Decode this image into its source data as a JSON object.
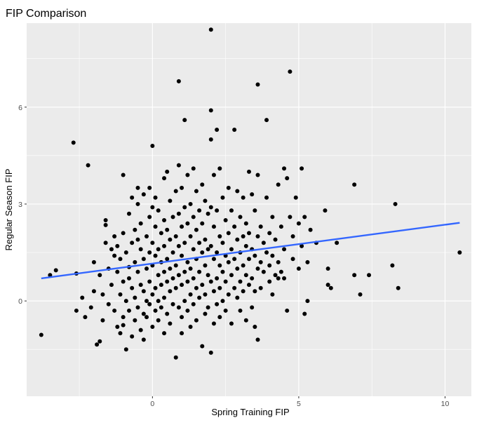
{
  "chart_data": {
    "type": "scatter",
    "title": "FIP Comparison",
    "xlabel": "Spring Training FIP",
    "ylabel": "Regular Season FIP",
    "xlim": [
      -4.3,
      10.9
    ],
    "ylim": [
      -2.95,
      8.6
    ],
    "xticks": [
      0,
      5,
      10
    ],
    "yticks": [
      0,
      3,
      6
    ],
    "grid": true,
    "panel_background": "#ebebeb",
    "grid_color": "#ffffff",
    "point_color": "#000000",
    "trend_color": "#3366ff",
    "trend_line": {
      "x": [
        -3.8,
        10.5
      ],
      "y": [
        0.7,
        2.42
      ]
    },
    "points": [
      [
        -3.8,
        -1.05
      ],
      [
        -3.5,
        0.8
      ],
      [
        -3.3,
        0.95
      ],
      [
        -2.7,
        4.9
      ],
      [
        -2.6,
        0.85
      ],
      [
        -2.6,
        -0.3
      ],
      [
        -2.4,
        0.1
      ],
      [
        -2.3,
        -0.5
      ],
      [
        -2.2,
        4.2
      ],
      [
        -2.1,
        -0.2
      ],
      [
        -2.0,
        0.3
      ],
      [
        -2.0,
        1.2
      ],
      [
        -1.9,
        -1.35
      ],
      [
        -1.8,
        -1.25
      ],
      [
        -1.8,
        0.8
      ],
      [
        -1.7,
        0.2
      ],
      [
        -1.7,
        -0.6
      ],
      [
        -1.6,
        1.8
      ],
      [
        -1.6,
        2.5
      ],
      [
        -1.6,
        2.35
      ],
      [
        -1.5,
        1.0
      ],
      [
        -1.5,
        -0.1
      ],
      [
        -1.4,
        1.6
      ],
      [
        -1.4,
        0.5
      ],
      [
        -1.3,
        1.4
      ],
      [
        -1.3,
        -0.3
      ],
      [
        -1.3,
        2.0
      ],
      [
        -1.2,
        0.9
      ],
      [
        -1.2,
        -0.8
      ],
      [
        -1.2,
        1.7
      ],
      [
        -1.1,
        0.2
      ],
      [
        -1.1,
        -1.0
      ],
      [
        -1.1,
        1.3
      ],
      [
        -1.0,
        3.9
      ],
      [
        -1.0,
        2.1
      ],
      [
        -1.0,
        0.6
      ],
      [
        -1.0,
        -0.5
      ],
      [
        -1.0,
        -0.75
      ],
      [
        -0.9,
        1.5
      ],
      [
        -0.9,
        0.0
      ],
      [
        -0.9,
        -1.5
      ],
      [
        -0.8,
        2.7
      ],
      [
        -0.8,
        1.05
      ],
      [
        -0.8,
        0.7
      ],
      [
        -0.8,
        -0.3
      ],
      [
        -0.7,
        3.2
      ],
      [
        -0.7,
        1.8
      ],
      [
        -0.7,
        0.4
      ],
      [
        -0.7,
        -1.1
      ],
      [
        -0.6,
        2.2
      ],
      [
        -0.6,
        1.2
      ],
      [
        -0.6,
        0.1
      ],
      [
        -0.6,
        -0.6
      ],
      [
        -0.5,
        3.5
      ],
      [
        -0.5,
        3.0
      ],
      [
        -0.5,
        1.9
      ],
      [
        -0.5,
        0.9
      ],
      [
        -0.5,
        -0.2
      ],
      [
        -0.4,
        2.4
      ],
      [
        -0.4,
        1.6
      ],
      [
        -0.4,
        0.5
      ],
      [
        -0.4,
        -0.9
      ],
      [
        -0.3,
        3.3
      ],
      [
        -0.3,
        1.3
      ],
      [
        -0.3,
        0.3
      ],
      [
        -0.3,
        -0.4
      ],
      [
        -0.3,
        -1.2
      ],
      [
        -0.2,
        2.0
      ],
      [
        -0.2,
        1.0
      ],
      [
        -0.2,
        0.0
      ],
      [
        -0.2,
        -0.5
      ],
      [
        -0.1,
        3.5
      ],
      [
        -0.1,
        2.6
      ],
      [
        -0.1,
        1.5
      ],
      [
        -0.1,
        0.6
      ],
      [
        -0.1,
        -0.1
      ],
      [
        0.0,
        4.8
      ],
      [
        0.0,
        2.9
      ],
      [
        0.0,
        1.8
      ],
      [
        0.0,
        1.1
      ],
      [
        0.0,
        0.2
      ],
      [
        0.0,
        -0.8
      ],
      [
        0.1,
        3.2
      ],
      [
        0.1,
        2.3
      ],
      [
        0.1,
        1.4
      ],
      [
        0.1,
        0.4
      ],
      [
        0.1,
        -0.3
      ],
      [
        0.2,
        2.8
      ],
      [
        0.2,
        1.6
      ],
      [
        0.2,
        0.8
      ],
      [
        0.2,
        0.0
      ],
      [
        0.2,
        -0.6
      ],
      [
        0.3,
        2.1
      ],
      [
        0.3,
        1.2
      ],
      [
        0.3,
        0.5
      ],
      [
        0.3,
        -0.2
      ],
      [
        0.4,
        3.8
      ],
      [
        0.4,
        2.5
      ],
      [
        0.4,
        1.7
      ],
      [
        0.4,
        0.9
      ],
      [
        0.4,
        0.1
      ],
      [
        0.4,
        -1.0
      ],
      [
        0.5,
        4.0
      ],
      [
        0.5,
        2.2
      ],
      [
        0.5,
        1.3
      ],
      [
        0.5,
        0.6
      ],
      [
        0.5,
        -0.4
      ],
      [
        0.6,
        3.1
      ],
      [
        0.6,
        1.9
      ],
      [
        0.6,
        1.0
      ],
      [
        0.6,
        0.3
      ],
      [
        0.6,
        -0.7
      ],
      [
        0.7,
        2.6
      ],
      [
        0.7,
        1.5
      ],
      [
        0.7,
        0.7
      ],
      [
        0.7,
        -0.1
      ],
      [
        0.8,
        3.4
      ],
      [
        0.8,
        2.0
      ],
      [
        0.8,
        1.1
      ],
      [
        0.8,
        0.4
      ],
      [
        0.8,
        -1.75
      ],
      [
        0.9,
        6.8
      ],
      [
        0.9,
        4.2
      ],
      [
        0.9,
        2.7
      ],
      [
        0.9,
        1.7
      ],
      [
        0.9,
        0.8
      ],
      [
        0.9,
        -0.2
      ],
      [
        1.0,
        3.5
      ],
      [
        1.0,
        2.3
      ],
      [
        1.0,
        1.4
      ],
      [
        1.0,
        0.5
      ],
      [
        1.0,
        -0.5
      ],
      [
        1.0,
        -1.0
      ],
      [
        1.1,
        5.6
      ],
      [
        1.1,
        2.9
      ],
      [
        1.1,
        1.8
      ],
      [
        1.1,
        0.9
      ],
      [
        1.1,
        0.0
      ],
      [
        1.2,
        3.9
      ],
      [
        1.2,
        2.4
      ],
      [
        1.2,
        1.2
      ],
      [
        1.2,
        0.6
      ],
      [
        1.2,
        -0.3
      ],
      [
        1.3,
        3.0
      ],
      [
        1.3,
        2.0
      ],
      [
        1.3,
        1.0
      ],
      [
        1.3,
        0.2
      ],
      [
        1.3,
        -0.8
      ],
      [
        1.4,
        4.1
      ],
      [
        1.4,
        2.6
      ],
      [
        1.4,
        1.6
      ],
      [
        1.4,
        0.7
      ],
      [
        1.4,
        -0.1
      ],
      [
        1.5,
        3.4
      ],
      [
        1.5,
        2.2
      ],
      [
        1.5,
        1.3
      ],
      [
        1.5,
        0.4
      ],
      [
        1.5,
        -0.6
      ],
      [
        1.6,
        2.8
      ],
      [
        1.6,
        1.8
      ],
      [
        1.6,
        0.9
      ],
      [
        1.6,
        0.1
      ],
      [
        1.7,
        3.6
      ],
      [
        1.7,
        2.4
      ],
      [
        1.7,
        1.5
      ],
      [
        1.7,
        0.5
      ],
      [
        1.7,
        -1.4
      ],
      [
        1.8,
        3.1
      ],
      [
        1.8,
        1.9
      ],
      [
        1.8,
        1.1
      ],
      [
        1.8,
        0.2
      ],
      [
        1.8,
        -0.4
      ],
      [
        1.9,
        2.7
      ],
      [
        1.9,
        1.6
      ],
      [
        1.9,
        0.8
      ],
      [
        1.9,
        -0.2
      ],
      [
        2.0,
        8.4
      ],
      [
        2.0,
        5.9
      ],
      [
        2.0,
        5.0
      ],
      [
        2.0,
        2.9
      ],
      [
        2.0,
        1.7
      ],
      [
        2.0,
        0.6
      ],
      [
        2.0,
        -1.6
      ],
      [
        2.1,
        3.9
      ],
      [
        2.1,
        2.3
      ],
      [
        2.1,
        1.3
      ],
      [
        2.1,
        0.3
      ],
      [
        2.1,
        -0.7
      ],
      [
        2.2,
        5.3
      ],
      [
        2.2,
        2.8
      ],
      [
        2.2,
        1.5
      ],
      [
        2.2,
        0.7
      ],
      [
        2.2,
        -0.1
      ],
      [
        2.3,
        4.1
      ],
      [
        2.3,
        2.0
      ],
      [
        2.3,
        1.1
      ],
      [
        2.3,
        0.4
      ],
      [
        2.3,
        -0.5
      ],
      [
        2.4,
        3.2
      ],
      [
        2.4,
        1.8
      ],
      [
        2.4,
        0.9
      ],
      [
        2.4,
        0.0
      ],
      [
        2.5,
        2.5
      ],
      [
        2.5,
        1.4
      ],
      [
        2.5,
        0.6
      ],
      [
        2.5,
        -0.3
      ],
      [
        2.6,
        3.5
      ],
      [
        2.6,
        2.1
      ],
      [
        2.6,
        1.2
      ],
      [
        2.6,
        0.2
      ],
      [
        2.7,
        2.8
      ],
      [
        2.7,
        1.6
      ],
      [
        2.7,
        0.8
      ],
      [
        2.7,
        -0.7
      ],
      [
        2.8,
        5.3
      ],
      [
        2.8,
        2.3
      ],
      [
        2.8,
        1.3
      ],
      [
        2.8,
        0.4
      ],
      [
        2.9,
        3.4
      ],
      [
        2.9,
        1.9
      ],
      [
        2.9,
        1.0
      ],
      [
        2.9,
        0.1
      ],
      [
        3.0,
        2.6
      ],
      [
        3.0,
        1.5
      ],
      [
        3.0,
        0.6
      ],
      [
        3.0,
        -0.3
      ],
      [
        3.1,
        3.2
      ],
      [
        3.1,
        2.0
      ],
      [
        3.1,
        1.1
      ],
      [
        3.1,
        0.3
      ],
      [
        3.2,
        2.4
      ],
      [
        3.2,
        1.7
      ],
      [
        3.2,
        0.8
      ],
      [
        3.2,
        -0.6
      ],
      [
        3.3,
        4.0
      ],
      [
        3.3,
        2.1
      ],
      [
        3.3,
        1.3
      ],
      [
        3.3,
        0.5
      ],
      [
        3.4,
        3.3
      ],
      [
        3.4,
        1.6
      ],
      [
        3.4,
        0.7
      ],
      [
        3.4,
        -0.2
      ],
      [
        3.5,
        2.8
      ],
      [
        3.5,
        1.4
      ],
      [
        3.5,
        0.3
      ],
      [
        3.5,
        -0.8
      ],
      [
        3.6,
        6.7
      ],
      [
        3.6,
        3.9
      ],
      [
        3.6,
        2.0
      ],
      [
        3.6,
        1.0
      ],
      [
        3.6,
        -1.2
      ],
      [
        3.7,
        2.3
      ],
      [
        3.7,
        1.2
      ],
      [
        3.7,
        0.4
      ],
      [
        3.8,
        1.8
      ],
      [
        3.8,
        0.9
      ],
      [
        3.9,
        5.6
      ],
      [
        3.9,
        3.2
      ],
      [
        3.9,
        1.5
      ],
      [
        4.0,
        2.1
      ],
      [
        4.0,
        1.1
      ],
      [
        4.0,
        0.6
      ],
      [
        4.1,
        2.6
      ],
      [
        4.1,
        1.4
      ],
      [
        4.1,
        0.2
      ],
      [
        4.2,
        1.9
      ],
      [
        4.2,
        0.8
      ],
      [
        4.3,
        3.6
      ],
      [
        4.3,
        1.2
      ],
      [
        4.3,
        0.7
      ],
      [
        4.4,
        2.3
      ],
      [
        4.4,
        0.9
      ],
      [
        4.5,
        4.1
      ],
      [
        4.5,
        1.6
      ],
      [
        4.5,
        0.7
      ],
      [
        4.6,
        3.8
      ],
      [
        4.6,
        -0.3
      ],
      [
        4.7,
        7.1
      ],
      [
        4.7,
        2.6
      ],
      [
        4.8,
        2.0
      ],
      [
        4.8,
        1.3
      ],
      [
        4.9,
        3.2
      ],
      [
        5.0,
        2.4
      ],
      [
        5.0,
        1.0
      ],
      [
        5.1,
        4.1
      ],
      [
        5.1,
        1.7
      ],
      [
        5.2,
        2.6
      ],
      [
        5.2,
        -0.4
      ],
      [
        5.3,
        0.0
      ],
      [
        5.3,
        1.2
      ],
      [
        5.4,
        2.2
      ],
      [
        5.6,
        1.8
      ],
      [
        5.9,
        2.8
      ],
      [
        6.0,
        1.0
      ],
      [
        6.0,
        0.5
      ],
      [
        6.1,
        0.4
      ],
      [
        6.3,
        1.8
      ],
      [
        6.9,
        3.6
      ],
      [
        6.9,
        0.8
      ],
      [
        7.1,
        0.2
      ],
      [
        7.4,
        0.8
      ],
      [
        8.2,
        1.1
      ],
      [
        8.3,
        3.0
      ],
      [
        8.4,
        0.4
      ],
      [
        10.5,
        1.5
      ]
    ]
  }
}
